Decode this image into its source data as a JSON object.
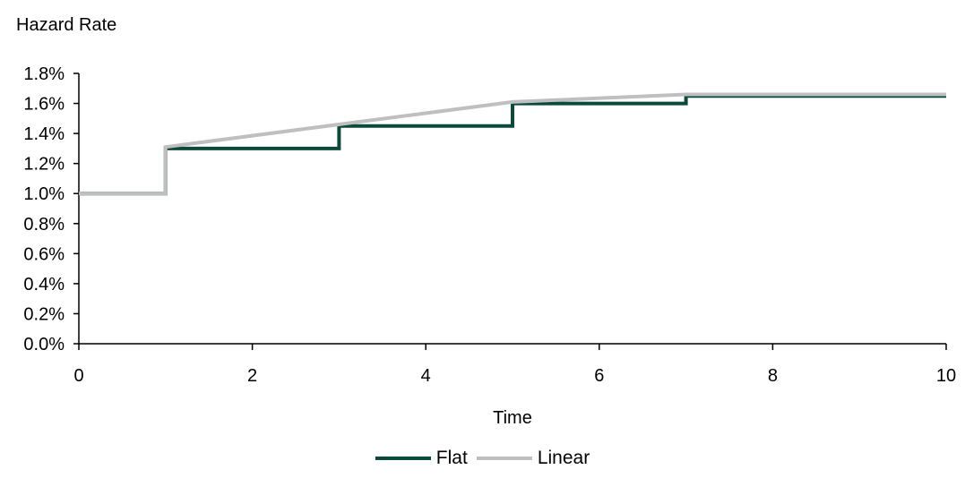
{
  "chart_data": {
    "type": "line",
    "title": "",
    "ylabel": "Hazard Rate",
    "xlabel": "Time",
    "xlim": [
      0,
      10
    ],
    "ylim": [
      0,
      1.8
    ],
    "x_ticks": [
      0,
      2,
      4,
      6,
      8,
      10
    ],
    "y_ticks": [
      0.0,
      0.2,
      0.4,
      0.6,
      0.8,
      1.0,
      1.2,
      1.4,
      1.6,
      1.8
    ],
    "y_tick_labels": [
      "0.0%",
      "0.2%",
      "0.4%",
      "0.6%",
      "0.8%",
      "1.0%",
      "1.2%",
      "1.4%",
      "1.6%",
      "1.8%"
    ],
    "x_tick_labels": [
      "0",
      "2",
      "4",
      "6",
      "8",
      "10"
    ],
    "grid": false,
    "legend_position": "bottom",
    "series": [
      {
        "name": "Flat",
        "color": "#0b4a3a",
        "x": [
          0,
          1,
          1,
          3,
          3,
          5,
          5,
          7,
          7,
          10
        ],
        "y": [
          1.0,
          1.0,
          1.3,
          1.3,
          1.45,
          1.45,
          1.6,
          1.6,
          1.65,
          1.65
        ]
      },
      {
        "name": "Linear",
        "color": "#bfbfbf",
        "x": [
          0,
          1,
          1,
          3,
          5,
          7,
          10
        ],
        "y": [
          1.0,
          1.0,
          1.31,
          1.46,
          1.61,
          1.66,
          1.66
        ]
      }
    ]
  }
}
